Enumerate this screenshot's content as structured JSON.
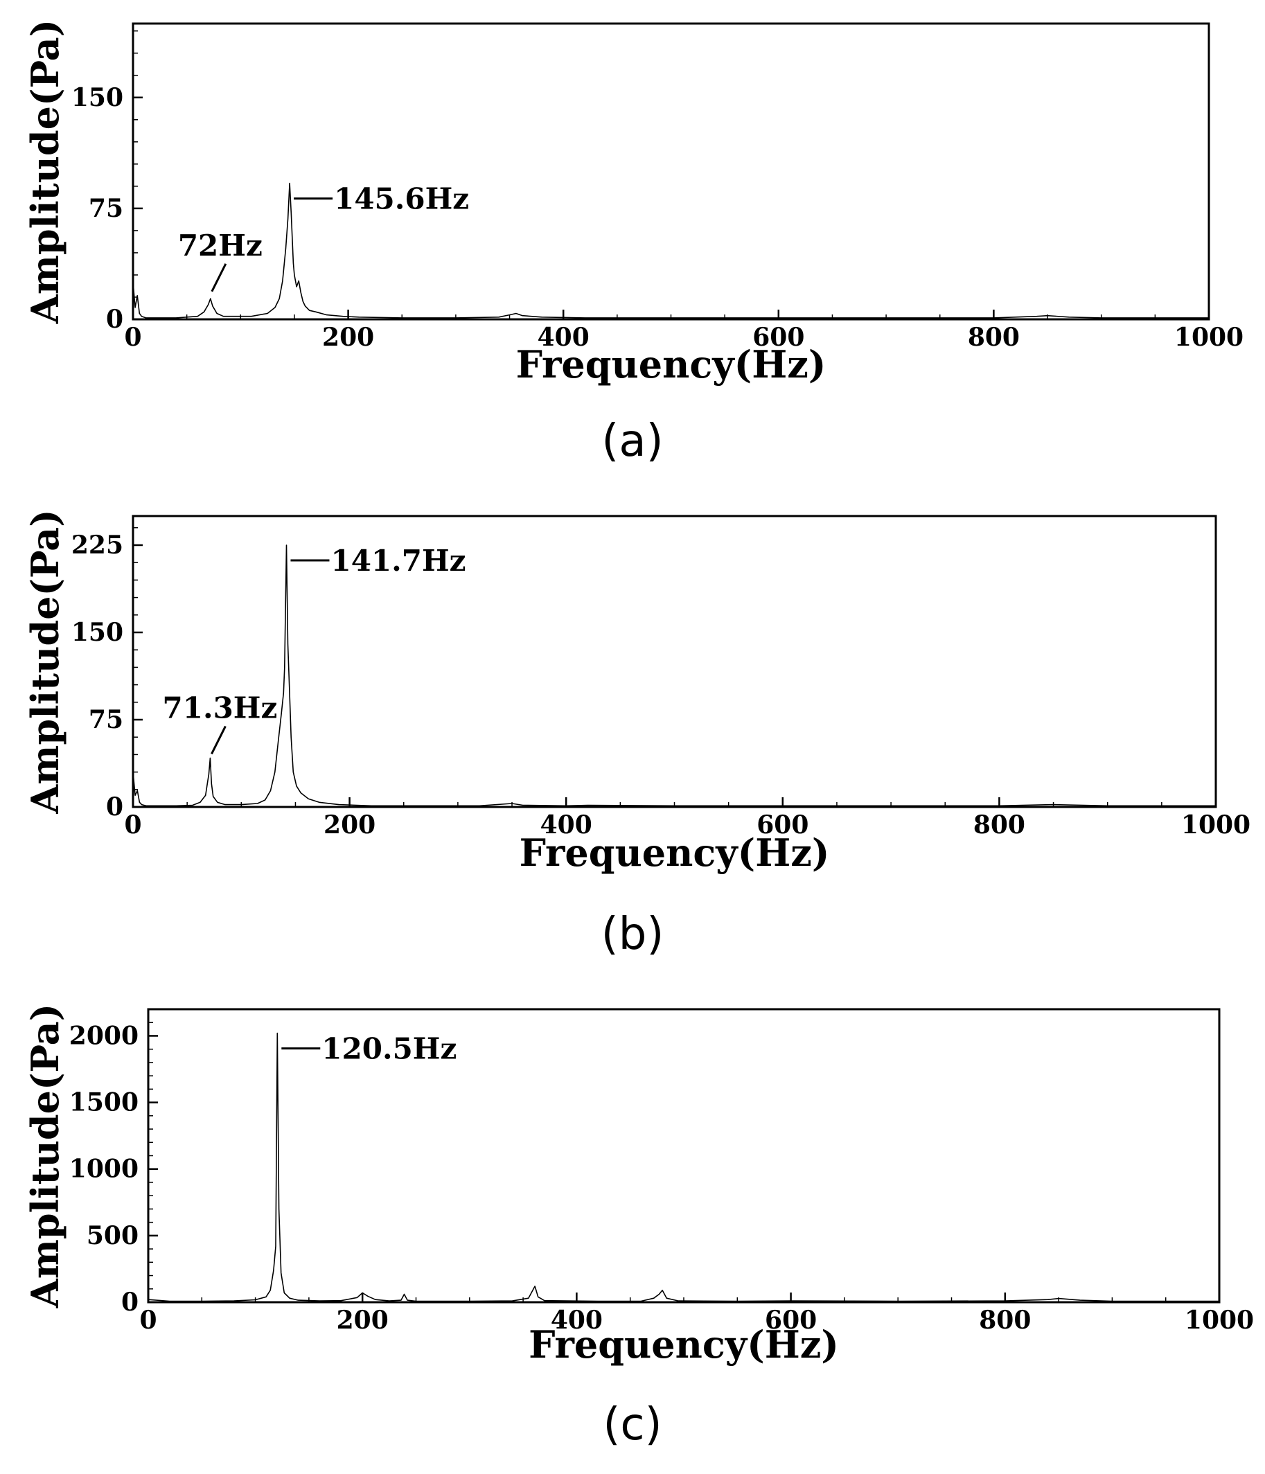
{
  "chart_data": [
    {
      "type": "line",
      "panel_label": "(a)",
      "xlabel": "Frequency(Hz)",
      "ylabel": "Amplitude(Pa)",
      "xlim": [
        0,
        1000
      ],
      "ylim": [
        0,
        200
      ],
      "x_ticks": [
        0,
        200,
        400,
        600,
        800,
        1000
      ],
      "y_ticks": [
        0,
        75,
        150
      ],
      "grid": false,
      "annotations": [
        {
          "text": "145.6Hz",
          "x": 145.6,
          "y": 92
        },
        {
          "text": "72Hz",
          "x": 72,
          "y": 16
        }
      ],
      "series": [
        {
          "x": [
            0,
            2,
            4,
            6,
            8,
            12,
            20,
            30,
            40,
            50,
            60,
            66,
            70,
            72,
            74,
            78,
            84,
            95,
            110,
            125,
            132,
            136,
            139,
            142,
            144,
            145.6,
            147,
            149,
            150,
            152,
            154,
            156,
            158,
            160,
            164,
            170,
            180,
            195,
            210,
            250,
            300,
            340,
            350,
            356,
            362,
            380,
            420,
            500,
            560,
            600,
            700,
            800,
            840,
            850,
            870,
            900,
            950,
            1000
          ],
          "y": [
            25,
            8,
            16,
            4,
            2,
            1,
            1,
            1,
            1,
            1.5,
            2,
            5,
            10,
            14,
            9,
            4,
            2,
            2,
            2,
            4,
            8,
            14,
            26,
            48,
            68,
            92,
            72,
            38,
            30,
            22,
            26,
            18,
            12,
            9,
            6,
            5,
            3,
            2,
            1.5,
            1,
            1,
            1.5,
            3,
            4,
            2.5,
            1.5,
            1,
            1,
            1,
            1,
            1,
            1,
            2,
            2.5,
            1.5,
            1,
            1,
            1
          ]
        }
      ]
    },
    {
      "type": "line",
      "panel_label": "(b)",
      "xlabel": "Frequency(Hz)",
      "ylabel": "Amplitude(Pa)",
      "xlim": [
        0,
        1000
      ],
      "ylim": [
        0,
        250
      ],
      "x_ticks": [
        0,
        200,
        400,
        600,
        800,
        1000
      ],
      "y_ticks": [
        0,
        75,
        150,
        225
      ],
      "grid": false,
      "annotations": [
        {
          "text": "141.7Hz",
          "x": 141.7,
          "y": 225
        },
        {
          "text": "71.3Hz",
          "x": 71.3,
          "y": 42
        }
      ],
      "series": [
        {
          "x": [
            0,
            2,
            4,
            6,
            8,
            12,
            20,
            40,
            55,
            62,
            67,
            69,
            70,
            71.3,
            72.5,
            74,
            78,
            85,
            100,
            115,
            122,
            127,
            131,
            134,
            137,
            139,
            140,
            141.7,
            143,
            144.5,
            146,
            148,
            151,
            155,
            162,
            172,
            190,
            220,
            260,
            320,
            350,
            360,
            400,
            420,
            500,
            600,
            700,
            800,
            850,
            900,
            1000
          ],
          "y": [
            30,
            10,
            14,
            4,
            2,
            1,
            1,
            1,
            1.5,
            4,
            10,
            22,
            28,
            42,
            20,
            9,
            4,
            2,
            2,
            3,
            6,
            14,
            30,
            55,
            80,
            98,
            120,
            225,
            140,
            100,
            60,
            30,
            18,
            12,
            7,
            4,
            2,
            1,
            1,
            1,
            3,
            1.5,
            1,
            1.5,
            1,
            1,
            1,
            1,
            2,
            1,
            1
          ]
        }
      ]
    },
    {
      "type": "line",
      "panel_label": "(c)",
      "xlabel": "Frequency(Hz)",
      "ylabel": "Amplitude(Pa)",
      "xlim": [
        0,
        1000
      ],
      "ylim": [
        0,
        2200
      ],
      "x_ticks": [
        0,
        200,
        400,
        600,
        800,
        1000
      ],
      "y_ticks": [
        0,
        500,
        1000,
        1500,
        2000
      ],
      "grid": false,
      "annotations": [
        {
          "text": "120.5Hz",
          "x": 120.5,
          "y": 2020
        }
      ],
      "series": [
        {
          "x": [
            0,
            20,
            50,
            80,
            100,
            110,
            114,
            117,
            119,
            120.5,
            122,
            124,
            127,
            132,
            140,
            160,
            180,
            195,
            200,
            205,
            212,
            225,
            236,
            239,
            242,
            250,
            300,
            340,
            355,
            359,
            361,
            364,
            370,
            420,
            460,
            472,
            477,
            480,
            484,
            495,
            550,
            600,
            700,
            800,
            840,
            850,
            870,
            900,
            1000
          ],
          "y": [
            20,
            8,
            8,
            10,
            18,
            40,
            90,
            240,
            420,
            2020,
            700,
            220,
            70,
            30,
            15,
            10,
            12,
            35,
            70,
            45,
            20,
            10,
            15,
            60,
            15,
            8,
            8,
            10,
            30,
            90,
            120,
            40,
            12,
            8,
            8,
            30,
            60,
            90,
            30,
            10,
            8,
            10,
            8,
            10,
            20,
            28,
            15,
            8,
            8
          ]
        }
      ]
    }
  ]
}
